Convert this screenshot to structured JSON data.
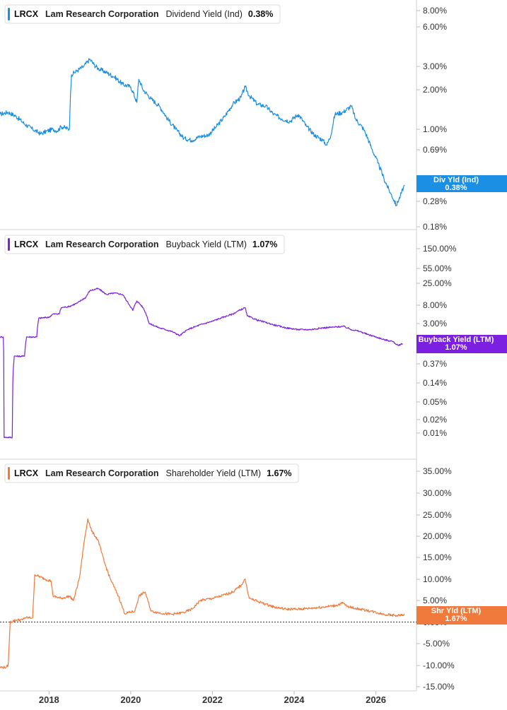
{
  "chart_data": [
    {
      "type": "line",
      "panel_id": "div",
      "ticker": "LRCX",
      "company": "Lam Research Corporation",
      "metric": "Dividend Yield (Ind)",
      "value_label": "0.38%",
      "tag_lines": [
        "Div Yld (Ind)",
        "0.38%"
      ],
      "color": "#1a8fe3",
      "scale": "log",
      "y_ticks": [
        "8.00%",
        "6.00%",
        "3.00%",
        "2.00%",
        "1.00%",
        "0.69%",
        "0.3",
        "0.28%",
        "0.18%"
      ],
      "series_points": [
        [
          2016.8,
          1.3
        ],
        [
          2017.0,
          1.35
        ],
        [
          2017.2,
          1.25
        ],
        [
          2017.4,
          1.1
        ],
        [
          2017.6,
          1.0
        ],
        [
          2017.8,
          0.92
        ],
        [
          2017.95,
          0.97
        ],
        [
          2018.1,
          1.0
        ],
        [
          2018.2,
          0.97
        ],
        [
          2018.3,
          1.05
        ],
        [
          2018.5,
          1.0
        ],
        [
          2018.55,
          2.6
        ],
        [
          2018.7,
          2.8
        ],
        [
          2018.85,
          3.0
        ],
        [
          2019.0,
          3.4
        ],
        [
          2019.1,
          3.1
        ],
        [
          2019.2,
          2.9
        ],
        [
          2019.4,
          2.7
        ],
        [
          2019.6,
          2.5
        ],
        [
          2019.8,
          2.2
        ],
        [
          2020.0,
          2.1
        ],
        [
          2020.15,
          1.6
        ],
        [
          2020.2,
          2.4
        ],
        [
          2020.3,
          2.0
        ],
        [
          2020.5,
          1.7
        ],
        [
          2020.7,
          1.5
        ],
        [
          2020.9,
          1.2
        ],
        [
          2021.1,
          1.0
        ],
        [
          2021.3,
          0.85
        ],
        [
          2021.5,
          0.82
        ],
        [
          2021.7,
          0.88
        ],
        [
          2021.9,
          0.9
        ],
        [
          2022.1,
          1.05
        ],
        [
          2022.3,
          1.25
        ],
        [
          2022.5,
          1.55
        ],
        [
          2022.7,
          1.75
        ],
        [
          2022.8,
          2.1
        ],
        [
          2022.9,
          1.8
        ],
        [
          2023.1,
          1.55
        ],
        [
          2023.3,
          1.5
        ],
        [
          2023.5,
          1.3
        ],
        [
          2023.7,
          1.2
        ],
        [
          2023.9,
          1.15
        ],
        [
          2024.1,
          1.3
        ],
        [
          2024.3,
          1.05
        ],
        [
          2024.5,
          0.9
        ],
        [
          2024.7,
          0.82
        ],
        [
          2024.8,
          0.75
        ],
        [
          2024.9,
          0.9
        ],
        [
          2025.0,
          1.3
        ],
        [
          2025.2,
          1.35
        ],
        [
          2025.4,
          1.5
        ],
        [
          2025.5,
          1.2
        ],
        [
          2025.7,
          1.0
        ],
        [
          2025.9,
          0.7
        ],
        [
          2026.05,
          0.55
        ],
        [
          2026.2,
          0.42
        ],
        [
          2026.35,
          0.33
        ],
        [
          2026.5,
          0.26
        ],
        [
          2026.6,
          0.31
        ],
        [
          2026.7,
          0.38
        ]
      ]
    },
    {
      "type": "line",
      "panel_id": "buy",
      "ticker": "LRCX",
      "company": "Lam Research Corporation",
      "metric": "Buyback Yield (LTM)",
      "value_label": "1.07%",
      "tag_lines": [
        "Buyback Yield (LTM)",
        "1.07%"
      ],
      "color": "#7b1fe0",
      "scale": "log",
      "y_ticks": [
        "150.00%",
        "55.00%",
        "25.00%",
        "8.00%",
        "3.00%",
        "1.00%",
        "0.37%",
        "0.14%",
        "0.05%",
        "0.02%",
        "0.01%"
      ],
      "series_points": [
        [
          2016.8,
          1.5
        ],
        [
          2016.88,
          1.5
        ],
        [
          2016.9,
          0.008
        ],
        [
          2017.1,
          0.008
        ],
        [
          2017.15,
          0.55
        ],
        [
          2017.4,
          0.55
        ],
        [
          2017.45,
          1.5
        ],
        [
          2017.7,
          1.5
        ],
        [
          2017.75,
          4.0
        ],
        [
          2018.0,
          4.2
        ],
        [
          2018.1,
          5.0
        ],
        [
          2018.25,
          5.0
        ],
        [
          2018.3,
          7.0
        ],
        [
          2018.5,
          7.5
        ],
        [
          2018.7,
          9.0
        ],
        [
          2018.9,
          12.0
        ],
        [
          2019.0,
          17.0
        ],
        [
          2019.2,
          19.0
        ],
        [
          2019.4,
          14.0
        ],
        [
          2019.6,
          15.0
        ],
        [
          2019.8,
          14.0
        ],
        [
          2019.9,
          10.0
        ],
        [
          2020.05,
          6.0
        ],
        [
          2020.15,
          10.0
        ],
        [
          2020.3,
          7.0
        ],
        [
          2020.45,
          3.0
        ],
        [
          2020.7,
          2.4
        ],
        [
          2021.0,
          2.0
        ],
        [
          2021.2,
          1.6
        ],
        [
          2021.4,
          2.2
        ],
        [
          2021.6,
          2.6
        ],
        [
          2021.8,
          3.0
        ],
        [
          2022.0,
          3.4
        ],
        [
          2022.2,
          4.0
        ],
        [
          2022.5,
          5.0
        ],
        [
          2022.8,
          7.0
        ],
        [
          2022.85,
          4.5
        ],
        [
          2023.1,
          3.6
        ],
        [
          2023.3,
          3.2
        ],
        [
          2023.5,
          2.8
        ],
        [
          2023.8,
          2.4
        ],
        [
          2024.1,
          2.2
        ],
        [
          2024.4,
          2.2
        ],
        [
          2024.7,
          2.4
        ],
        [
          2025.0,
          2.5
        ],
        [
          2025.2,
          2.6
        ],
        [
          2025.4,
          2.2
        ],
        [
          2025.6,
          2.0
        ],
        [
          2025.8,
          1.7
        ],
        [
          2026.0,
          1.5
        ],
        [
          2026.2,
          1.3
        ],
        [
          2026.4,
          1.2
        ],
        [
          2026.55,
          0.95
        ],
        [
          2026.65,
          1.07
        ]
      ]
    },
    {
      "type": "line",
      "panel_id": "shr",
      "ticker": "LRCX",
      "company": "Lam Research Corporation",
      "metric": "Shareholder Yield (LTM)",
      "value_label": "1.67%",
      "tag_lines": [
        "Shr Yld (LTM)",
        "1.67%"
      ],
      "color": "#f07a3c",
      "scale": "linear",
      "ylim": [
        -15,
        35
      ],
      "y_ticks": [
        "35.00%",
        "30.00%",
        "25.00%",
        "20.00%",
        "15.00%",
        "10.00%",
        "5.00%",
        "0.00%",
        "-5.00%",
        "-10.00%",
        "-15.00%"
      ],
      "zero_line": true,
      "series_points": [
        [
          2016.8,
          -10.5
        ],
        [
          2016.95,
          -10.5
        ],
        [
          2017.0,
          -10.0
        ],
        [
          2017.05,
          0.0
        ],
        [
          2017.2,
          0.5
        ],
        [
          2017.35,
          0.5
        ],
        [
          2017.4,
          1.0
        ],
        [
          2017.6,
          1.0
        ],
        [
          2017.65,
          11.0
        ],
        [
          2017.9,
          10.0
        ],
        [
          2018.05,
          9.5
        ],
        [
          2018.1,
          6.0
        ],
        [
          2018.3,
          5.5
        ],
        [
          2018.5,
          6.0
        ],
        [
          2018.6,
          5.0
        ],
        [
          2018.75,
          10.5
        ],
        [
          2018.85,
          18.0
        ],
        [
          2018.95,
          24.0
        ],
        [
          2019.05,
          21.0
        ],
        [
          2019.2,
          19.0
        ],
        [
          2019.35,
          14.0
        ],
        [
          2019.5,
          10.0
        ],
        [
          2019.7,
          6.0
        ],
        [
          2019.85,
          2.0
        ],
        [
          2020.1,
          2.5
        ],
        [
          2020.2,
          6.0
        ],
        [
          2020.35,
          7.0
        ],
        [
          2020.5,
          2.5
        ],
        [
          2020.8,
          2.0
        ],
        [
          2021.0,
          1.8
        ],
        [
          2021.3,
          2.2
        ],
        [
          2021.5,
          3.0
        ],
        [
          2021.7,
          5.0
        ],
        [
          2022.0,
          5.5
        ],
        [
          2022.2,
          6.0
        ],
        [
          2022.5,
          7.0
        ],
        [
          2022.7,
          8.5
        ],
        [
          2022.8,
          10.0
        ],
        [
          2022.9,
          5.5
        ],
        [
          2023.2,
          4.5
        ],
        [
          2023.5,
          3.5
        ],
        [
          2023.8,
          3.0
        ],
        [
          2024.1,
          3.0
        ],
        [
          2024.4,
          3.2
        ],
        [
          2024.8,
          3.6
        ],
        [
          2025.0,
          3.8
        ],
        [
          2025.2,
          4.4
        ],
        [
          2025.3,
          3.6
        ],
        [
          2025.6,
          3.0
        ],
        [
          2025.9,
          2.5
        ],
        [
          2026.2,
          1.8
        ],
        [
          2026.5,
          1.5
        ],
        [
          2026.7,
          1.67
        ]
      ]
    }
  ],
  "x_axis": {
    "ticks": [
      "2018",
      "2020",
      "2022",
      "2024",
      "2026"
    ],
    "values": [
      2018,
      2020,
      2022,
      2024,
      2026
    ]
  }
}
